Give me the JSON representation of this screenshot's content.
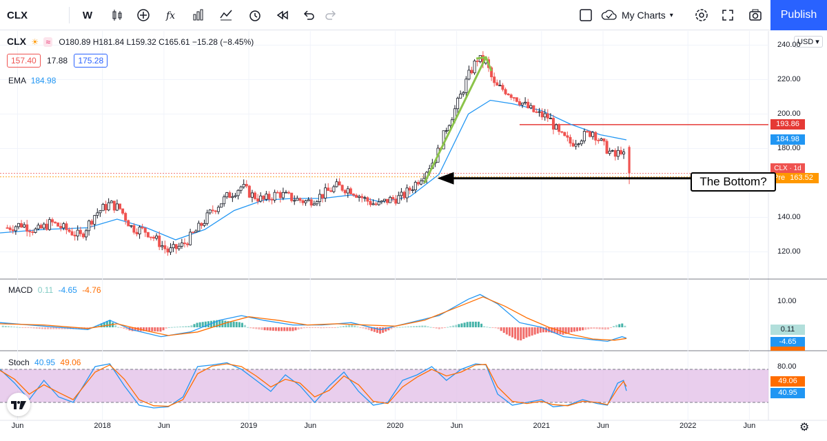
{
  "toolbar": {
    "symbol": "CLX",
    "interval": "W",
    "my_charts": "My Charts",
    "publish": "Publish",
    "icons": [
      "candles-icon",
      "add-icon",
      "fx-icon",
      "bar-chart-icon",
      "templates-icon",
      "alert-icon",
      "replay-icon",
      "undo-icon",
      "redo-icon",
      "layout-icon",
      "cloud-icon",
      "settings-icon",
      "fullscreen-icon",
      "camera-icon"
    ]
  },
  "legend": {
    "symbol": "CLX",
    "ohlc": "O180.89 H181.84 L159.32 C165.61 −15.28 (−8.45%)",
    "bid": "157.40",
    "spread": "17.88",
    "ask": "175.28",
    "ema_label": "EMA",
    "ema_value": "184.98"
  },
  "currency": "USD",
  "price_axis": {
    "ticks": [
      "240.00",
      "220.00",
      "200.00",
      "180.00",
      "140.00",
      "120.00"
    ],
    "tags": {
      "resistance": "193.86",
      "ema": "184.98",
      "symbol_tag": "CLX · 1d 7h",
      "pre": "163.52",
      "pre_label": "Pre"
    }
  },
  "macd": {
    "label": "MACD",
    "hist": "0.11",
    "macd": "-4.65",
    "signal": "-4.76",
    "axis_tick": "10.00",
    "tag_hist": "0.11",
    "tag_macd": "-4.65"
  },
  "stoch": {
    "label": "Stoch",
    "k": "40.95",
    "d": "49.06",
    "axis_tick": "80.00",
    "tag_d": "49.06",
    "tag_k": "40.95"
  },
  "x_axis": [
    {
      "label": "Jun",
      "x": 2017.42
    },
    {
      "label": "2018",
      "x": 2018.0
    },
    {
      "label": "Jun",
      "x": 2018.42
    },
    {
      "label": "2019",
      "x": 2019.0
    },
    {
      "label": "Jun",
      "x": 2019.42
    },
    {
      "label": "2020",
      "x": 2020.0
    },
    {
      "label": "Jun",
      "x": 2020.42
    },
    {
      "label": "2021",
      "x": 2021.0
    },
    {
      "label": "Jun",
      "x": 2021.42
    },
    {
      "label": "2022",
      "x": 2022.0
    },
    {
      "label": "Jun",
      "x": 2022.42
    }
  ],
  "annotation": "The Bottom?",
  "colors": {
    "up": "#26a69a",
    "down": "#ef5350",
    "candle_up": "#131722",
    "ema": "#2196f3",
    "macd_line": "#2196f3",
    "signal_line": "#ff6d00",
    "stoch_k": "#2196f3",
    "stoch_d": "#ff6d00",
    "stoch_band": "#e1bee7",
    "resistance": "#e53935",
    "trend_arrow": "#8bc34a",
    "accent": "#2962ff"
  },
  "chart_data": {
    "type": "candlestick",
    "x_range": [
      2017.3,
      2022.55
    ],
    "price_range": [
      105,
      245
    ],
    "close_path": [
      [
        2017.35,
        134
      ],
      [
        2017.45,
        136
      ],
      [
        2017.55,
        132
      ],
      [
        2017.65,
        137
      ],
      [
        2017.75,
        133
      ],
      [
        2017.85,
        129
      ],
      [
        2017.95,
        142
      ],
      [
        2018.05,
        148
      ],
      [
        2018.12,
        145
      ],
      [
        2018.2,
        134
      ],
      [
        2018.3,
        132
      ],
      [
        2018.38,
        126
      ],
      [
        2018.45,
        120
      ],
      [
        2018.55,
        124
      ],
      [
        2018.65,
        133
      ],
      [
        2018.75,
        144
      ],
      [
        2018.85,
        152
      ],
      [
        2018.95,
        158
      ],
      [
        2019.02,
        153
      ],
      [
        2019.1,
        150
      ],
      [
        2019.2,
        154
      ],
      [
        2019.3,
        151
      ],
      [
        2019.4,
        149
      ],
      [
        2019.5,
        153
      ],
      [
        2019.6,
        158
      ],
      [
        2019.7,
        156
      ],
      [
        2019.8,
        150
      ],
      [
        2019.88,
        147
      ],
      [
        2019.95,
        150
      ],
      [
        2020.05,
        152
      ],
      [
        2020.12,
        158
      ],
      [
        2020.2,
        166
      ],
      [
        2020.28,
        175
      ],
      [
        2020.35,
        192
      ],
      [
        2020.42,
        205
      ],
      [
        2020.5,
        222
      ],
      [
        2020.56,
        232
      ],
      [
        2020.62,
        230
      ],
      [
        2020.68,
        216
      ],
      [
        2020.75,
        214
      ],
      [
        2020.82,
        210
      ],
      [
        2020.9,
        204
      ],
      [
        2020.97,
        200
      ],
      [
        2021.05,
        198
      ],
      [
        2021.12,
        188
      ],
      [
        2021.2,
        183
      ],
      [
        2021.28,
        187
      ],
      [
        2021.35,
        190
      ],
      [
        2021.42,
        182
      ],
      [
        2021.5,
        175
      ],
      [
        2021.55,
        180
      ],
      [
        2021.58,
        168
      ]
    ],
    "ema_path": [
      [
        2017.3,
        131
      ],
      [
        2017.6,
        133
      ],
      [
        2017.9,
        134
      ],
      [
        2018.1,
        139
      ],
      [
        2018.3,
        134
      ],
      [
        2018.5,
        127
      ],
      [
        2018.7,
        133
      ],
      [
        2018.9,
        144
      ],
      [
        2019.1,
        150
      ],
      [
        2019.3,
        151
      ],
      [
        2019.5,
        151
      ],
      [
        2019.7,
        153
      ],
      [
        2019.9,
        149
      ],
      [
        2020.1,
        152
      ],
      [
        2020.3,
        165
      ],
      [
        2020.5,
        200
      ],
      [
        2020.65,
        208
      ],
      [
        2020.8,
        206
      ],
      [
        2021.0,
        202
      ],
      [
        2021.2,
        194
      ],
      [
        2021.4,
        188
      ],
      [
        2021.58,
        185
      ]
    ],
    "macd_path": [
      [
        2017.3,
        2
      ],
      [
        2017.6,
        0.5
      ],
      [
        2017.9,
        -1
      ],
      [
        2018.05,
        3
      ],
      [
        2018.2,
        -1
      ],
      [
        2018.4,
        -4
      ],
      [
        2018.6,
        -2
      ],
      [
        2018.8,
        3
      ],
      [
        2018.95,
        5
      ],
      [
        2019.1,
        3
      ],
      [
        2019.3,
        1
      ],
      [
        2019.5,
        1
      ],
      [
        2019.7,
        2
      ],
      [
        2019.9,
        -1
      ],
      [
        2020.1,
        2
      ],
      [
        2020.3,
        5
      ],
      [
        2020.5,
        12
      ],
      [
        2020.58,
        14
      ],
      [
        2020.7,
        10
      ],
      [
        2020.85,
        2
      ],
      [
        2021.0,
        0
      ],
      [
        2021.15,
        -4
      ],
      [
        2021.3,
        -5
      ],
      [
        2021.45,
        -6
      ],
      [
        2021.55,
        -4
      ],
      [
        2021.58,
        -4.65
      ]
    ],
    "signal_path": [
      [
        2017.3,
        1.5
      ],
      [
        2017.6,
        1
      ],
      [
        2017.9,
        -0.5
      ],
      [
        2018.1,
        1.5
      ],
      [
        2018.3,
        -1.5
      ],
      [
        2018.45,
        -3.5
      ],
      [
        2018.65,
        -2
      ],
      [
        2018.85,
        2
      ],
      [
        2019.0,
        4.5
      ],
      [
        2019.2,
        3
      ],
      [
        2019.4,
        1
      ],
      [
        2019.6,
        1.5
      ],
      [
        2019.8,
        1
      ],
      [
        2020.0,
        0.5
      ],
      [
        2020.2,
        3
      ],
      [
        2020.4,
        8
      ],
      [
        2020.6,
        13
      ],
      [
        2020.75,
        9
      ],
      [
        2020.9,
        4
      ],
      [
        2021.05,
        0
      ],
      [
        2021.2,
        -3
      ],
      [
        2021.35,
        -5
      ],
      [
        2021.5,
        -5.5
      ],
      [
        2021.58,
        -4.76
      ]
    ],
    "stoch_k_path": [
      [
        2017.3,
        80
      ],
      [
        2017.4,
        55
      ],
      [
        2017.5,
        25
      ],
      [
        2017.6,
        60
      ],
      [
        2017.7,
        30
      ],
      [
        2017.8,
        20
      ],
      [
        2017.95,
        85
      ],
      [
        2018.05,
        90
      ],
      [
        2018.15,
        50
      ],
      [
        2018.25,
        15
      ],
      [
        2018.35,
        10
      ],
      [
        2018.45,
        12
      ],
      [
        2018.55,
        30
      ],
      [
        2018.65,
        85
      ],
      [
        2018.75,
        88
      ],
      [
        2018.85,
        92
      ],
      [
        2018.95,
        80
      ],
      [
        2019.05,
        60
      ],
      [
        2019.15,
        40
      ],
      [
        2019.25,
        70
      ],
      [
        2019.35,
        50
      ],
      [
        2019.45,
        20
      ],
      [
        2019.55,
        50
      ],
      [
        2019.65,
        75
      ],
      [
        2019.75,
        40
      ],
      [
        2019.85,
        15
      ],
      [
        2019.95,
        20
      ],
      [
        2020.05,
        60
      ],
      [
        2020.15,
        70
      ],
      [
        2020.25,
        85
      ],
      [
        2020.35,
        60
      ],
      [
        2020.45,
        80
      ],
      [
        2020.55,
        90
      ],
      [
        2020.62,
        88
      ],
      [
        2020.7,
        35
      ],
      [
        2020.8,
        15
      ],
      [
        2020.9,
        20
      ],
      [
        2021.0,
        25
      ],
      [
        2021.08,
        12
      ],
      [
        2021.18,
        15
      ],
      [
        2021.28,
        25
      ],
      [
        2021.38,
        18
      ],
      [
        2021.45,
        15
      ],
      [
        2021.52,
        55
      ],
      [
        2021.56,
        60
      ],
      [
        2021.58,
        40.95
      ]
    ],
    "stoch_d_path": [
      [
        2017.3,
        78
      ],
      [
        2017.4,
        62
      ],
      [
        2017.5,
        35
      ],
      [
        2017.6,
        52
      ],
      [
        2017.7,
        38
      ],
      [
        2017.8,
        25
      ],
      [
        2017.95,
        75
      ],
      [
        2018.05,
        88
      ],
      [
        2018.15,
        62
      ],
      [
        2018.25,
        25
      ],
      [
        2018.35,
        14
      ],
      [
        2018.45,
        13
      ],
      [
        2018.55,
        25
      ],
      [
        2018.65,
        72
      ],
      [
        2018.75,
        86
      ],
      [
        2018.85,
        90
      ],
      [
        2018.95,
        85
      ],
      [
        2019.05,
        68
      ],
      [
        2019.15,
        48
      ],
      [
        2019.25,
        62
      ],
      [
        2019.35,
        55
      ],
      [
        2019.45,
        30
      ],
      [
        2019.55,
        42
      ],
      [
        2019.65,
        68
      ],
      [
        2019.75,
        52
      ],
      [
        2019.85,
        22
      ],
      [
        2019.95,
        18
      ],
      [
        2020.05,
        48
      ],
      [
        2020.15,
        66
      ],
      [
        2020.25,
        80
      ],
      [
        2020.35,
        68
      ],
      [
        2020.45,
        75
      ],
      [
        2020.55,
        88
      ],
      [
        2020.62,
        89
      ],
      [
        2020.7,
        48
      ],
      [
        2020.8,
        22
      ],
      [
        2020.9,
        18
      ],
      [
        2021.0,
        22
      ],
      [
        2021.08,
        16
      ],
      [
        2021.18,
        14
      ],
      [
        2021.28,
        22
      ],
      [
        2021.38,
        20
      ],
      [
        2021.45,
        16
      ],
      [
        2021.52,
        45
      ],
      [
        2021.56,
        58
      ],
      [
        2021.58,
        49.06
      ]
    ],
    "resistance_level": 193.86,
    "resistance_from": 2020.85,
    "bottom_level": 163.52,
    "bottom_from": 2020.25,
    "trend_arrow": [
      [
        2020.2,
        160
      ],
      [
        2020.62,
        233
      ]
    ]
  }
}
